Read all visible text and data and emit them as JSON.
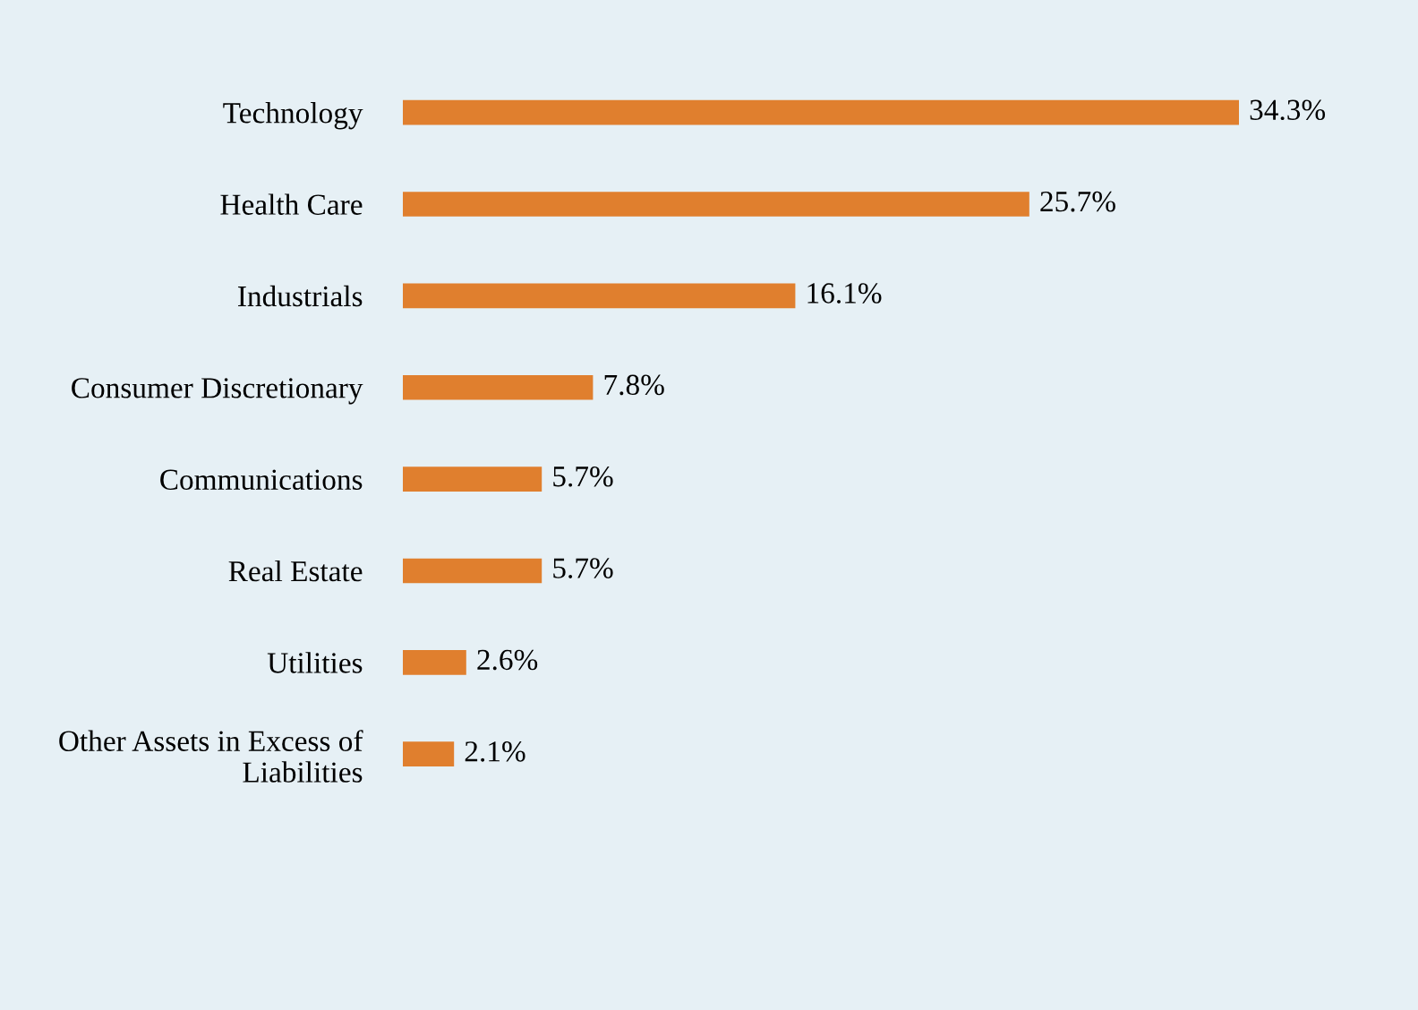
{
  "chart_data": {
    "type": "bar",
    "orientation": "horizontal",
    "categories": [
      "Technology",
      "Health Care",
      "Industrials",
      "Consumer Discretionary",
      "Communications",
      "Real Estate",
      "Utilities",
      "Other Assets in Excess of\nLiabilities"
    ],
    "values": [
      34.3,
      25.7,
      16.1,
      7.8,
      5.7,
      5.7,
      2.6,
      2.1
    ],
    "value_labels": [
      "34.3%",
      "25.7%",
      "16.1%",
      "7.8%",
      "5.7%",
      "5.7%",
      "2.6%",
      "2.1%"
    ],
    "color": "#e07f2e",
    "grid": false,
    "legend": false,
    "tick_labels": "y"
  }
}
